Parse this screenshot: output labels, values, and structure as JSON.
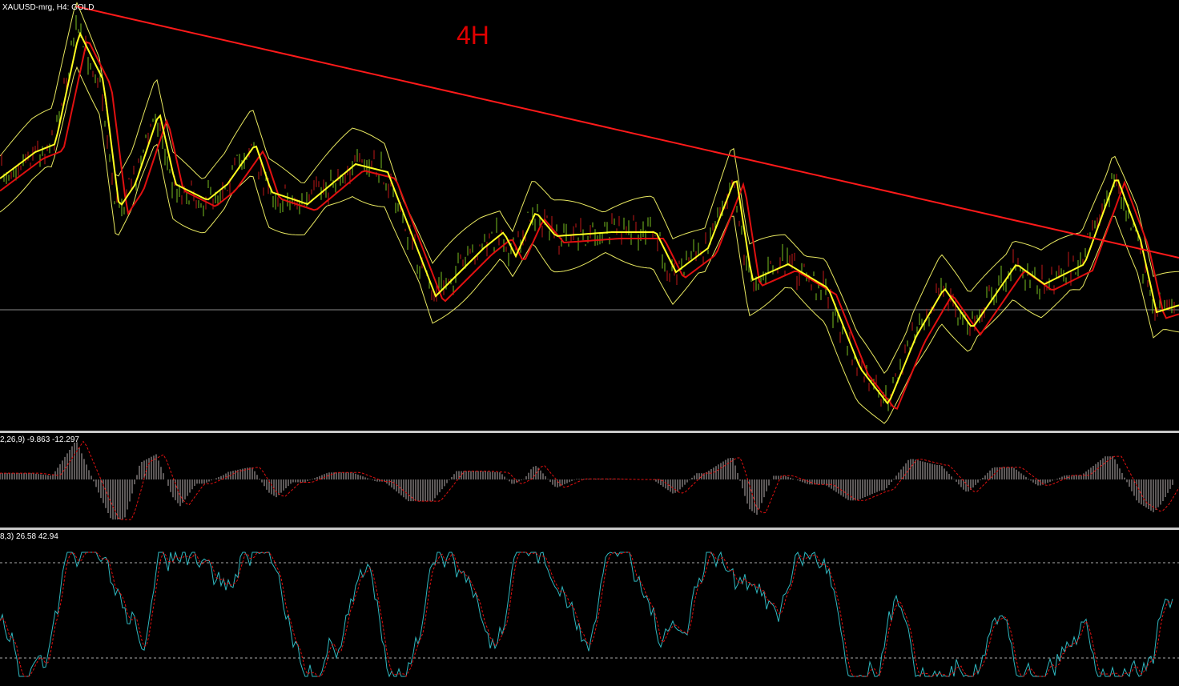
{
  "header": {
    "symbol": "XAUUSD-mrg, H4: GOLD",
    "timeframe_note": "4H"
  },
  "macd_panel": {
    "label": "2,26,9) -9.863 -12.297"
  },
  "stochastic_panel": {
    "label": "8,3) 26.58 42.94"
  }
}
